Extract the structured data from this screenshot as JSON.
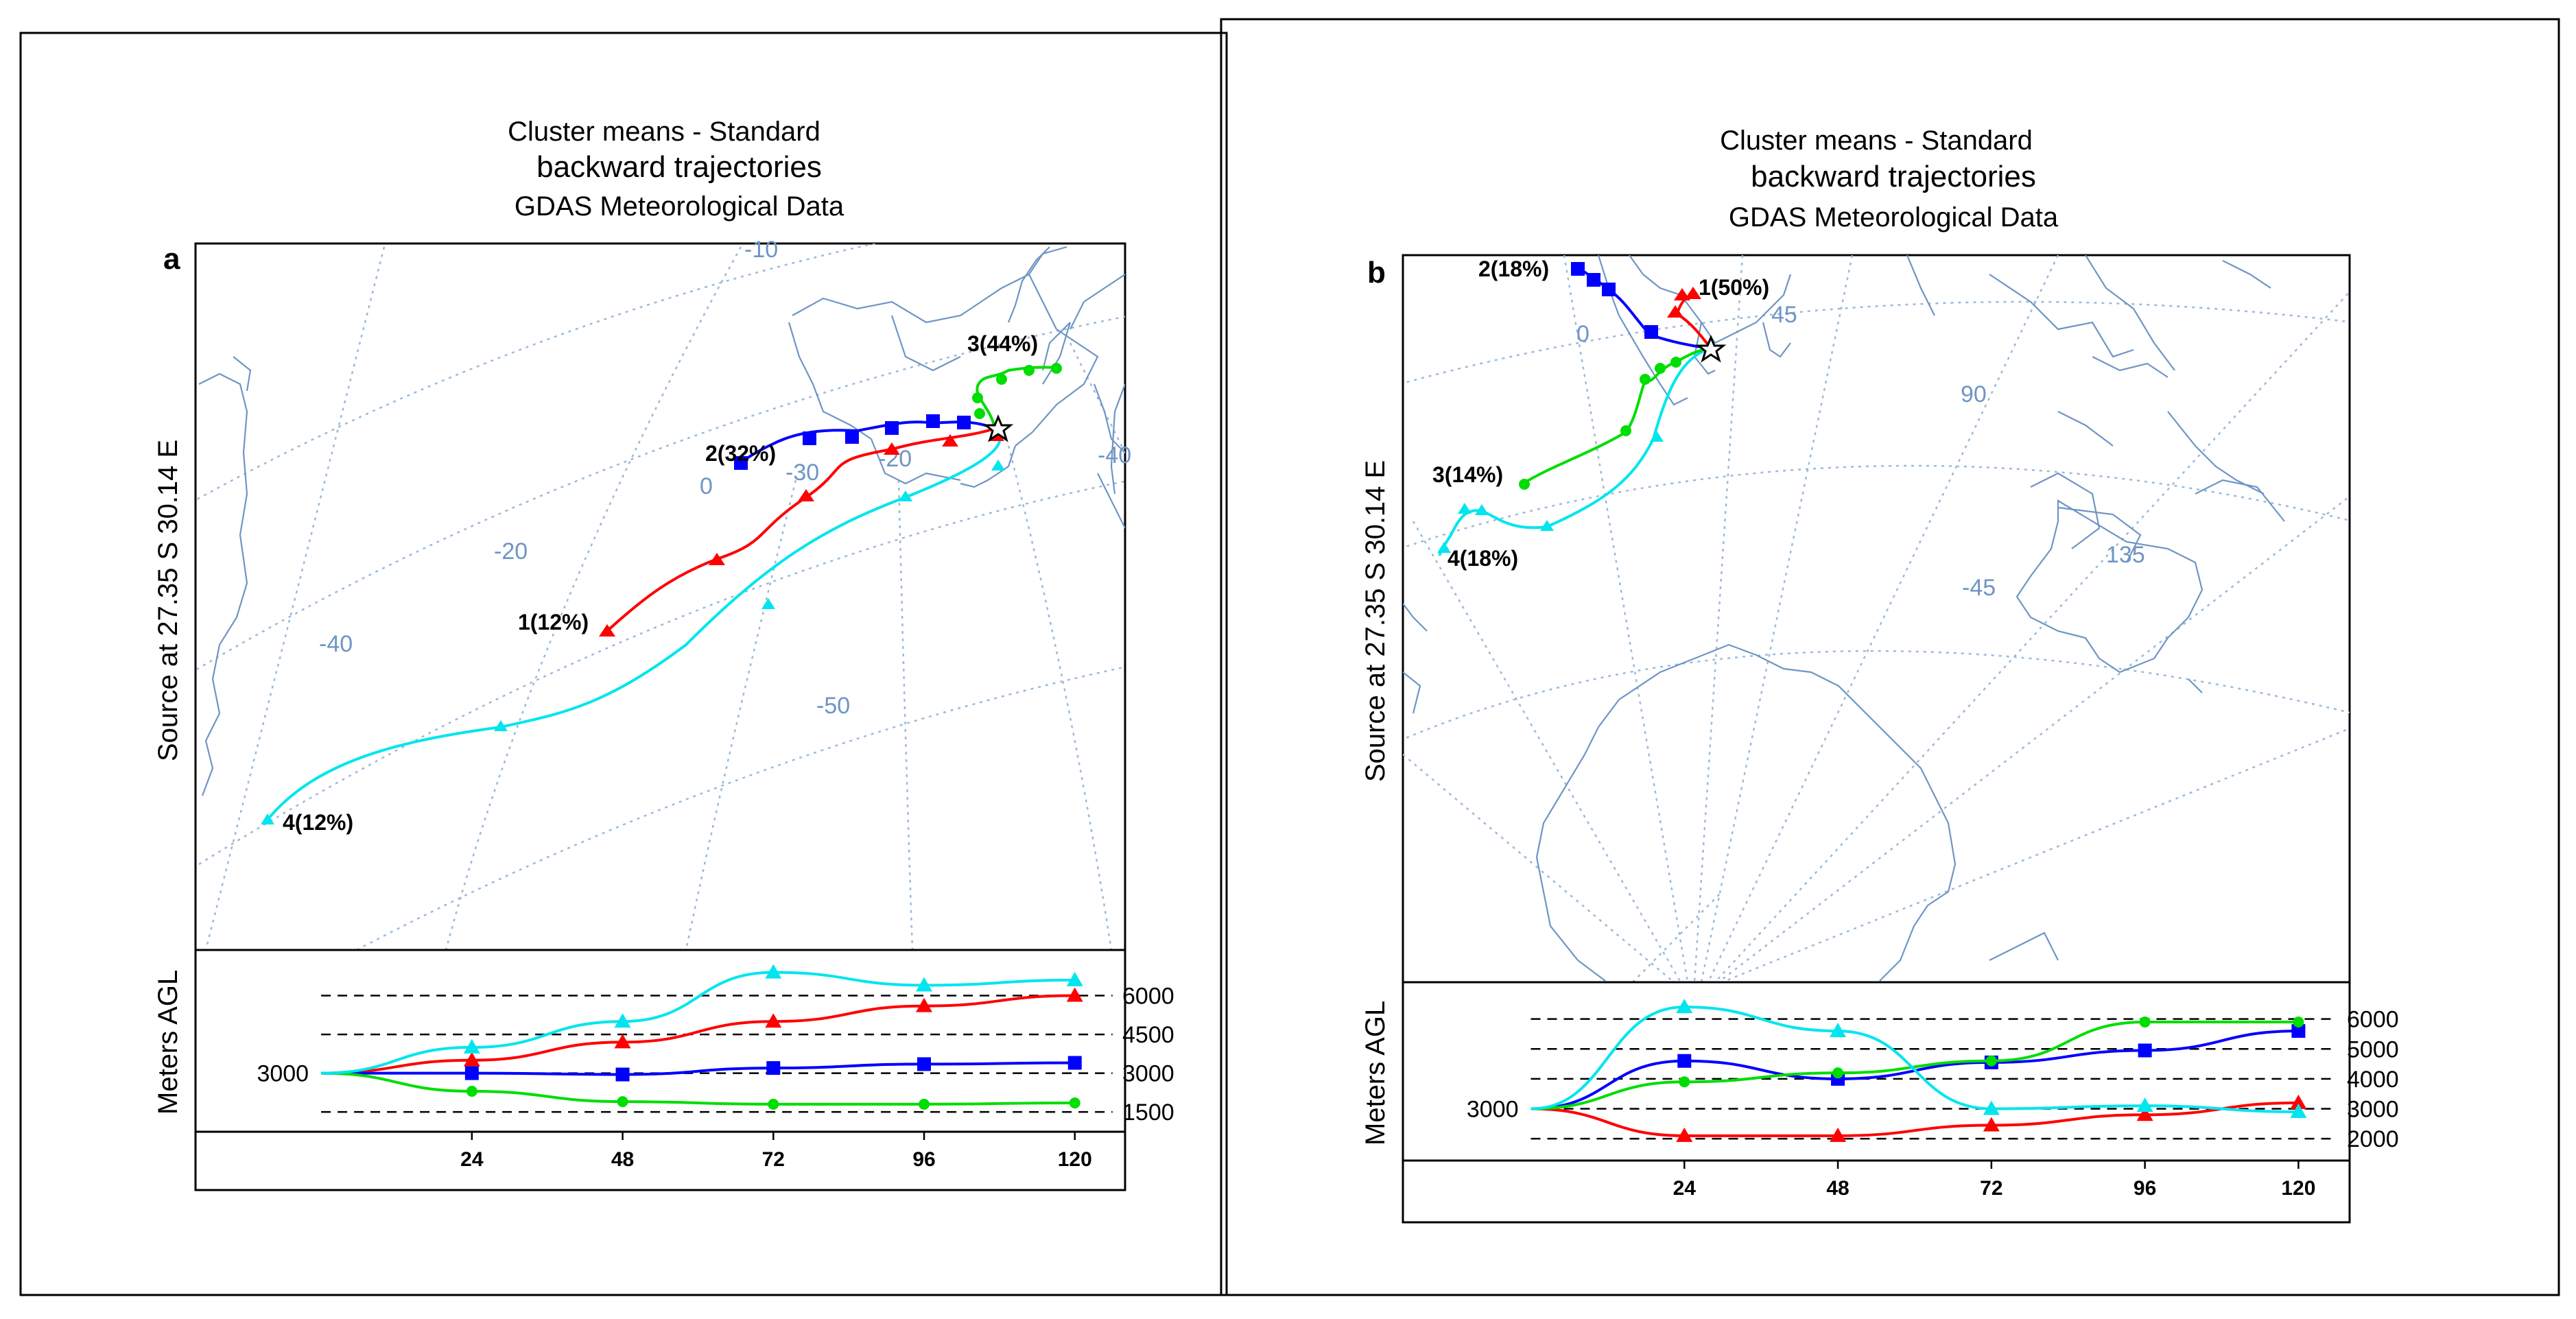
{
  "chart_data": [
    {
      "type": "line",
      "panel_label": "a",
      "title_lines": [
        "Cluster means - Standard",
        "backward trajectories",
        "GDAS Meteorological Data"
      ],
      "source_label": "Source   at   27.35 S   30.14 E",
      "map": {
        "lat_labels": [
          "-10",
          "-30",
          "-20",
          "-40",
          "-50",
          "0"
        ],
        "lon_labels": [
          "-20",
          "40",
          "0",
          "-40",
          "-30"
        ],
        "source_point": {
          "lat": -27.35,
          "lon": 30.14
        },
        "trajectories": [
          {
            "cluster": 1,
            "label": "1(12%)",
            "color": "#ff0000",
            "marker": "triangle"
          },
          {
            "cluster": 2,
            "label": "2(32%)",
            "color": "#0000ff",
            "marker": "square"
          },
          {
            "cluster": 3,
            "label": "3(44%)",
            "color": "#00dd00",
            "marker": "circle"
          },
          {
            "cluster": 4,
            "label": "4(12%)",
            "color": "#00e5ee",
            "marker": "triangle"
          }
        ]
      },
      "height_panel": {
        "ylabel": "Meters AGL",
        "y_ticks": [
          "6000",
          "4500",
          "3000",
          "1500"
        ],
        "start_label": "3000",
        "x_ticks": [
          "24",
          "48",
          "72",
          "96",
          "120"
        ],
        "x": [
          0,
          24,
          48,
          72,
          96,
          120
        ],
        "series": [
          {
            "cluster": 1,
            "color": "#ff0000",
            "values": [
              3000,
              3500,
              4200,
              5000,
              5600,
              6000
            ]
          },
          {
            "cluster": 2,
            "color": "#0000ff",
            "values": [
              3000,
              3000,
              2950,
              3200,
              3350,
              3400
            ]
          },
          {
            "cluster": 3,
            "color": "#00dd00",
            "values": [
              3000,
              2300,
              1900,
              1800,
              1800,
              1850
            ]
          },
          {
            "cluster": 4,
            "color": "#00e5ee",
            "values": [
              3000,
              4000,
              5000,
              6900,
              6400,
              6600
            ]
          }
        ],
        "ylim": [
          1000,
          7500
        ],
        "xlim": [
          -20,
          128
        ]
      }
    },
    {
      "type": "line",
      "panel_label": "b",
      "title_lines": [
        "Cluster means - Standard",
        "backward trajectories",
        "GDAS Meteorological Data"
      ],
      "source_label": "Source   at   27.35 S   30.14 E",
      "map": {
        "lat_labels": [
          "-45"
        ],
        "lon_labels": [
          "0",
          "45",
          "90",
          "135"
        ],
        "source_point": {
          "lat": -27.35,
          "lon": 30.14
        },
        "trajectories": [
          {
            "cluster": 1,
            "label": "1(50%)",
            "color": "#ff0000",
            "marker": "triangle"
          },
          {
            "cluster": 2,
            "label": "2(18%)",
            "color": "#0000ff",
            "marker": "square"
          },
          {
            "cluster": 3,
            "label": "3(14%)",
            "color": "#00dd00",
            "marker": "circle"
          },
          {
            "cluster": 4,
            "label": "4(18%)",
            "color": "#00e5ee",
            "marker": "triangle"
          }
        ]
      },
      "height_panel": {
        "ylabel": "Meters AGL",
        "y_ticks": [
          "6000",
          "5000",
          "4000",
          "3000",
          "2000"
        ],
        "start_label": "3000",
        "x_ticks": [
          "24",
          "48",
          "72",
          "96",
          "120"
        ],
        "x": [
          0,
          24,
          48,
          72,
          96,
          120
        ],
        "series": [
          {
            "cluster": 1,
            "color": "#ff0000",
            "values": [
              3000,
              2100,
              2100,
              2450,
              2800,
              3200
            ]
          },
          {
            "cluster": 2,
            "color": "#0000ff",
            "values": [
              3000,
              4600,
              4000,
              4550,
              4950,
              5600
            ]
          },
          {
            "cluster": 3,
            "color": "#00dd00",
            "values": [
              3000,
              3900,
              4200,
              4600,
              5900,
              5900
            ]
          },
          {
            "cluster": 4,
            "color": "#00e5ee",
            "values": [
              3000,
              6400,
              5600,
              3000,
              3100,
              2900
            ]
          }
        ],
        "ylim": [
          1500,
          7000
        ],
        "xlim": [
          -20,
          128
        ]
      }
    }
  ]
}
